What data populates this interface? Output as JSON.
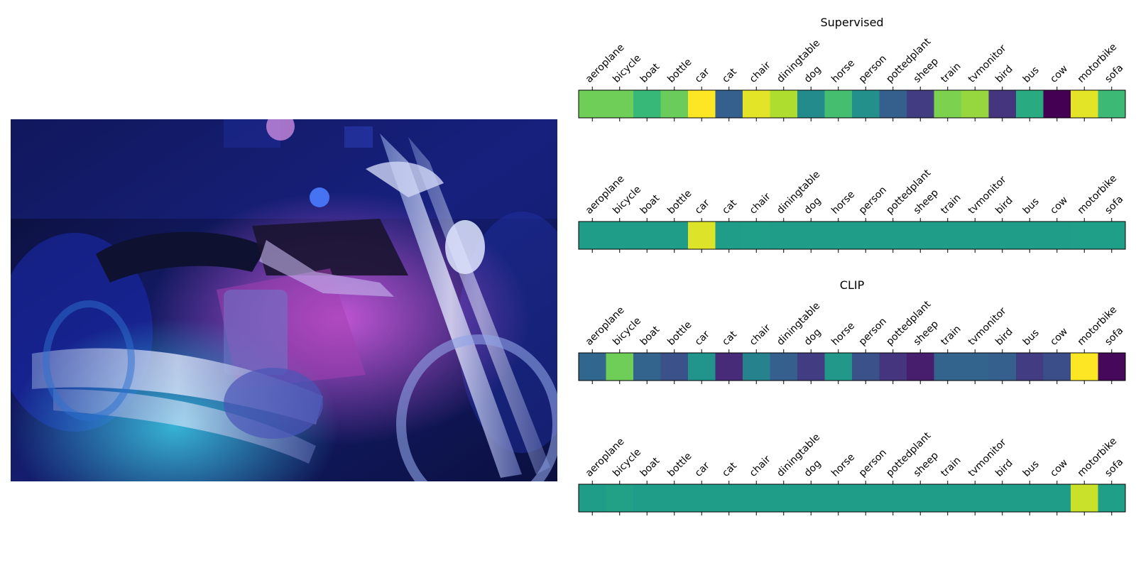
{
  "image": {
    "subject": "motorcycle-photo",
    "dominant_colors": [
      "#0b0f3a",
      "#1d2aa8",
      "#d14fd6",
      "#9fb7e0",
      "#3ad0e6"
    ]
  },
  "colormap": {
    "name": "viridis",
    "stops": [
      "#440154",
      "#482878",
      "#3e4989",
      "#31688e",
      "#26828e",
      "#1f9e89",
      "#35b779",
      "#6ece58",
      "#b5de2b",
      "#fde725"
    ]
  },
  "chart_data": [
    {
      "type": "heatmap",
      "title": "Supervised",
      "categories": [
        "aeroplane",
        "bicycle",
        "boat",
        "bottle",
        "car",
        "cat",
        "chair",
        "diningtable",
        "dog",
        "horse",
        "person",
        "pottedplant",
        "sheep",
        "train",
        "tvmonitor",
        "bird",
        "bus",
        "cow",
        "motorbike",
        "sofa"
      ],
      "values": [
        0.78,
        0.78,
        0.67,
        0.77,
        1.0,
        0.3,
        0.96,
        0.88,
        0.48,
        0.7,
        0.5,
        0.3,
        0.18,
        0.8,
        0.84,
        0.15,
        0.61,
        0.0,
        0.96,
        0.68
      ]
    },
    {
      "type": "heatmap",
      "title": "",
      "categories": [
        "aeroplane",
        "bicycle",
        "boat",
        "bottle",
        "car",
        "cat",
        "chair",
        "diningtable",
        "dog",
        "horse",
        "person",
        "pottedplant",
        "sheep",
        "train",
        "tvmonitor",
        "bird",
        "bus",
        "cow",
        "motorbike",
        "sofa"
      ],
      "values": [
        0.55,
        0.55,
        0.55,
        0.55,
        0.95,
        0.55,
        0.56,
        0.55,
        0.55,
        0.55,
        0.55,
        0.55,
        0.55,
        0.55,
        0.55,
        0.55,
        0.55,
        0.55,
        0.56,
        0.56
      ]
    },
    {
      "type": "heatmap",
      "title": "CLIP",
      "categories": [
        "aeroplane",
        "bicycle",
        "boat",
        "bottle",
        "car",
        "cat",
        "chair",
        "diningtable",
        "dog",
        "horse",
        "person",
        "pottedplant",
        "sheep",
        "train",
        "tvmonitor",
        "bird",
        "bus",
        "cow",
        "motorbike",
        "sofa"
      ],
      "values": [
        0.33,
        0.78,
        0.32,
        0.25,
        0.52,
        0.12,
        0.45,
        0.3,
        0.18,
        0.53,
        0.25,
        0.15,
        0.08,
        0.32,
        0.32,
        0.3,
        0.18,
        0.24,
        1.0,
        0.02
      ]
    },
    {
      "type": "heatmap",
      "title": "",
      "categories": [
        "aeroplane",
        "bicycle",
        "boat",
        "bottle",
        "car",
        "cat",
        "chair",
        "diningtable",
        "dog",
        "horse",
        "person",
        "pottedplant",
        "sheep",
        "train",
        "tvmonitor",
        "bird",
        "bus",
        "cow",
        "motorbike",
        "sofa"
      ],
      "values": [
        0.55,
        0.57,
        0.55,
        0.55,
        0.55,
        0.55,
        0.55,
        0.55,
        0.55,
        0.55,
        0.55,
        0.55,
        0.55,
        0.55,
        0.55,
        0.55,
        0.55,
        0.55,
        0.92,
        0.56
      ]
    }
  ]
}
